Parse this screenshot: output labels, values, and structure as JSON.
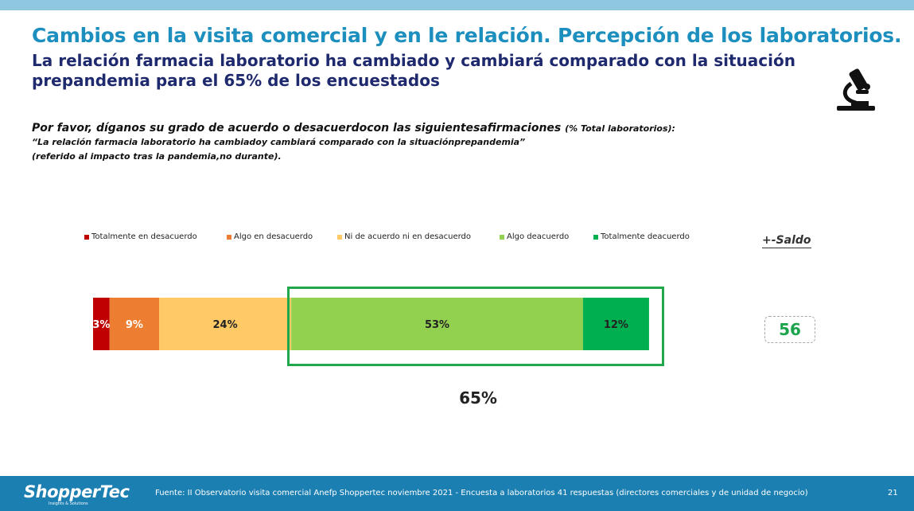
{
  "header": {
    "title": "Cambios en la visita comercial y en le relación. Percepción de los laboratorios.",
    "subtitle": "La relación farmacia laboratorio ha cambiado y cambiará comparado con la situación prepandemia para el 65% de los encuestados",
    "icon": "microscope-icon"
  },
  "question": {
    "line1": "Por favor, díganos su grado de acuerdo o desacuerdocon las siguientesafirmaciones",
    "line1_suffix": "(% Total laboratorios):",
    "line2": "“La relación farmacia laboratorio ha cambiadoy cambiará comparado con la situaciónprepandemia”",
    "line3": "(referido al impacto tras la pandemia,no durante)."
  },
  "saldo": {
    "header": "+-Saldo",
    "value": "56"
  },
  "highlight": {
    "value": "65%",
    "color": "#21a84a"
  },
  "chart_data": {
    "type": "bar",
    "orientation": "horizontal",
    "stacked": true,
    "xlim": [
      0,
      100
    ],
    "legend_position": "top",
    "series": [
      {
        "name": "Totalmente en desacuerdo",
        "value": 3,
        "label": "3%",
        "color": "#c00000"
      },
      {
        "name": "Algo en desacuerdo",
        "value": 9,
        "label": "9%",
        "color": "#ed7d31"
      },
      {
        "name": "Ni de acuerdo ni en desacuerdo",
        "value": 24,
        "label": "24%",
        "color": "#ffc966"
      },
      {
        "name": "Algo deacuerdo",
        "value": 53,
        "label": "53%",
        "color": "#92d050"
      },
      {
        "name": "Totalmente deacuerdo",
        "value": 12,
        "label": "12%",
        "color": "#00b050"
      }
    ]
  },
  "footer": {
    "logo": "ShopperTec",
    "logo_sub": "Insights & Solutions",
    "source": "Fuente: II Observatorio visita comercial Anefp Shoppertec noviembre 2021 - Encuesta a laboratorios 41 respuestas (directores comerciales y de unidad de negocio)",
    "page": "21"
  }
}
